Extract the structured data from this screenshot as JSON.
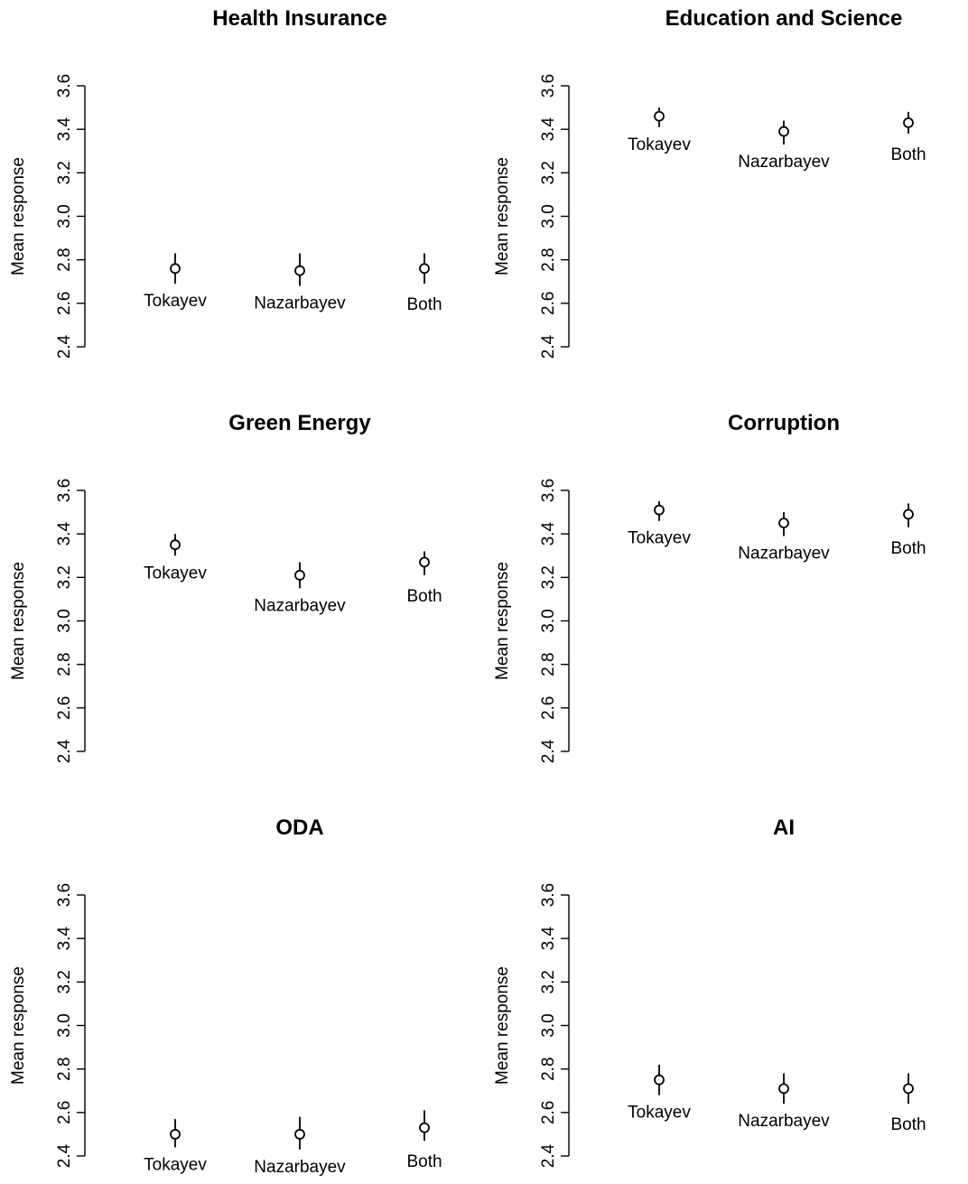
{
  "chart_data": [
    {
      "type": "scatter",
      "title": "Health Insurance",
      "ylabel": "Mean response",
      "ylim": [
        2.4,
        3.6
      ],
      "yticks": [
        "2.4",
        "2.6",
        "2.8",
        "3.0",
        "3.2",
        "3.4",
        "3.6"
      ],
      "categories": [
        "Tokayev",
        "Nazarbayev",
        "Both"
      ],
      "values": [
        2.76,
        2.75,
        2.76
      ],
      "ci_low": [
        2.69,
        2.68,
        2.69
      ],
      "ci_high": [
        2.83,
        2.83,
        2.83
      ],
      "error_bars": true,
      "grid": false
    },
    {
      "type": "scatter",
      "title": "Education and Science",
      "ylabel": "Mean response",
      "ylim": [
        2.4,
        3.6
      ],
      "yticks": [
        "2.4",
        "2.6",
        "2.8",
        "3.0",
        "3.2",
        "3.4",
        "3.6"
      ],
      "categories": [
        "Tokayev",
        "Nazarbayev",
        "Both"
      ],
      "values": [
        3.46,
        3.39,
        3.43
      ],
      "ci_low": [
        3.41,
        3.33,
        3.38
      ],
      "ci_high": [
        3.5,
        3.44,
        3.48
      ],
      "error_bars": true,
      "grid": false
    },
    {
      "type": "scatter",
      "title": "Green Energy",
      "ylabel": "Mean response",
      "ylim": [
        2.4,
        3.6
      ],
      "yticks": [
        "2.4",
        "2.6",
        "2.8",
        "3.0",
        "3.2",
        "3.4",
        "3.6"
      ],
      "categories": [
        "Tokayev",
        "Nazarbayev",
        "Both"
      ],
      "values": [
        3.35,
        3.21,
        3.27
      ],
      "ci_low": [
        3.3,
        3.15,
        3.21
      ],
      "ci_high": [
        3.4,
        3.27,
        3.32
      ],
      "error_bars": true,
      "grid": false
    },
    {
      "type": "scatter",
      "title": "Corruption",
      "ylabel": "Mean response",
      "ylim": [
        2.4,
        3.6
      ],
      "yticks": [
        "2.4",
        "2.6",
        "2.8",
        "3.0",
        "3.2",
        "3.4",
        "3.6"
      ],
      "categories": [
        "Tokayev",
        "Nazarbayev",
        "Both"
      ],
      "values": [
        3.51,
        3.45,
        3.49
      ],
      "ci_low": [
        3.46,
        3.39,
        3.43
      ],
      "ci_high": [
        3.55,
        3.5,
        3.54
      ],
      "error_bars": true,
      "grid": false
    },
    {
      "type": "scatter",
      "title": "ODA",
      "ylabel": "Mean response",
      "ylim": [
        2.4,
        3.6
      ],
      "yticks": [
        "2.4",
        "2.6",
        "2.8",
        "3.0",
        "3.2",
        "3.4",
        "3.6"
      ],
      "categories": [
        "Tokayev",
        "Nazarbayev",
        "Both"
      ],
      "values": [
        2.5,
        2.5,
        2.53
      ],
      "ci_low": [
        2.44,
        2.43,
        2.47
      ],
      "ci_high": [
        2.57,
        2.58,
        2.61
      ],
      "error_bars": true,
      "grid": false
    },
    {
      "type": "scatter",
      "title": "AI",
      "ylabel": "Mean response",
      "ylim": [
        2.4,
        3.6
      ],
      "yticks": [
        "2.4",
        "2.6",
        "2.8",
        "3.0",
        "3.2",
        "3.4",
        "3.6"
      ],
      "categories": [
        "Tokayev",
        "Nazarbayev",
        "Both"
      ],
      "values": [
        2.75,
        2.71,
        2.71
      ],
      "ci_low": [
        2.68,
        2.64,
        2.64
      ],
      "ci_high": [
        2.82,
        2.78,
        2.78
      ],
      "error_bars": true,
      "grid": false
    }
  ],
  "colors": {
    "marks": "#000000",
    "background": "#ffffff"
  }
}
